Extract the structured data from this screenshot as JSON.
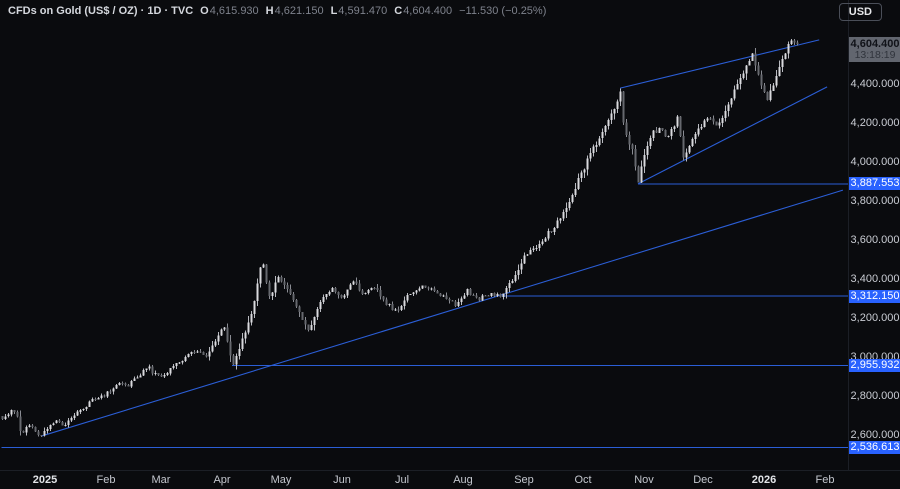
{
  "header": {
    "symbol_title": "CFDs on Gold (US$ / OZ) · 1D · TVC",
    "ohlc": [
      {
        "label": "O",
        "value": "4,615.930"
      },
      {
        "label": "H",
        "value": "4,621.150"
      },
      {
        "label": "L",
        "value": "4,591.470"
      },
      {
        "label": "C",
        "value": "4,604.400"
      }
    ],
    "change": "−11.530 (−0.25%)"
  },
  "toolbar": {
    "currency_label": "USD"
  },
  "price_axis": {
    "ticks": [
      {
        "label": "4,400.000",
        "price": 4400
      },
      {
        "label": "4,200.000",
        "price": 4200
      },
      {
        "label": "4,000.000",
        "price": 4000
      },
      {
        "label": "3,800.000",
        "price": 3800
      },
      {
        "label": "3,600.000",
        "price": 3600
      },
      {
        "label": "3,400.000",
        "price": 3400
      },
      {
        "label": "3,200.000",
        "price": 3200
      },
      {
        "label": "3,000.000",
        "price": 3000
      },
      {
        "label": "2,800.000",
        "price": 2800
      },
      {
        "label": "2,600.000",
        "price": 2600
      }
    ],
    "level_labels": [
      {
        "label": "3,887.553",
        "price": 3887.553
      },
      {
        "label": "3,312.150",
        "price": 3312.15
      },
      {
        "label": "2,955.932",
        "price": 2955.932
      },
      {
        "label": "2,536.613",
        "price": 2536.613
      }
    ],
    "current": {
      "label": "4,604.400",
      "countdown": "13:18:19",
      "price": 4604.4
    }
  },
  "time_axis": {
    "ticks": [
      {
        "label": "2025",
        "date": "2025-01-01",
        "bold": true
      },
      {
        "label": "Feb",
        "date": "2025-02-01",
        "bold": false
      },
      {
        "label": "Mar",
        "date": "2025-03-01",
        "bold": false
      },
      {
        "label": "Apr",
        "date": "2025-04-01",
        "bold": false
      },
      {
        "label": "May",
        "date": "2025-05-01",
        "bold": false
      },
      {
        "label": "Jun",
        "date": "2025-06-01",
        "bold": false
      },
      {
        "label": "Jul",
        "date": "2025-07-01",
        "bold": false
      },
      {
        "label": "Aug",
        "date": "2025-08-01",
        "bold": false
      },
      {
        "label": "Sep",
        "date": "2025-09-01",
        "bold": false
      },
      {
        "label": "Oct",
        "date": "2025-10-01",
        "bold": false
      },
      {
        "label": "Nov",
        "date": "2025-11-01",
        "bold": false
      },
      {
        "label": "Dec",
        "date": "2025-12-01",
        "bold": false
      },
      {
        "label": "2026",
        "date": "2026-01-01",
        "bold": true
      },
      {
        "label": "Feb",
        "date": "2026-02-01",
        "bold": false
      }
    ]
  },
  "chart_data": {
    "type": "candlestick",
    "title": "CFDs on Gold (US$ / OZ)",
    "timeframe": "1D",
    "exchange": "TVC",
    "ohlc_today": {
      "open": 4615.93,
      "high": 4621.15,
      "low": 4591.47,
      "close": 4604.4,
      "change": -11.53,
      "change_pct": -0.25
    },
    "visible_price_range": [
      2421,
      4831
    ],
    "visible_time_range": [
      "2024-12-10",
      "2026-02-28"
    ],
    "price_keypoints": [
      [
        "2024-12-10",
        2690
      ],
      [
        "2024-12-17",
        2732
      ],
      [
        "2024-12-20",
        2600
      ],
      [
        "2024-12-23",
        2655
      ],
      [
        "2024-12-27",
        2618
      ],
      [
        "2024-12-30",
        2594
      ],
      [
        "2025-01-03",
        2652
      ],
      [
        "2025-01-07",
        2668
      ],
      [
        "2025-01-10",
        2645
      ],
      [
        "2025-01-16",
        2705
      ],
      [
        "2025-01-24",
        2770
      ],
      [
        "2025-02-01",
        2812
      ],
      [
        "2025-02-07",
        2872
      ],
      [
        "2025-02-12",
        2855
      ],
      [
        "2025-02-22",
        2950
      ],
      [
        "2025-02-27",
        2898
      ],
      [
        "2025-03-05",
        2930
      ],
      [
        "2025-03-12",
        2990
      ],
      [
        "2025-03-19",
        3035
      ],
      [
        "2025-03-24",
        3008
      ],
      [
        "2025-03-30",
        3120
      ],
      [
        "2025-04-02",
        3148
      ],
      [
        "2025-04-04",
        3060
      ],
      [
        "2025-04-06",
        2958
      ],
      [
        "2025-04-11",
        3090
      ],
      [
        "2025-04-16",
        3240
      ],
      [
        "2025-04-21",
        3495
      ],
      [
        "2025-04-25",
        3300
      ],
      [
        "2025-04-29",
        3425
      ],
      [
        "2025-05-06",
        3320
      ],
      [
        "2025-05-11",
        3205
      ],
      [
        "2025-05-15",
        3128
      ],
      [
        "2025-05-20",
        3285
      ],
      [
        "2025-05-27",
        3355
      ],
      [
        "2025-06-01",
        3300
      ],
      [
        "2025-06-06",
        3388
      ],
      [
        "2025-06-11",
        3330
      ],
      [
        "2025-06-17",
        3360
      ],
      [
        "2025-06-22",
        3288
      ],
      [
        "2025-06-28",
        3230
      ],
      [
        "2025-07-05",
        3330
      ],
      [
        "2025-07-11",
        3362
      ],
      [
        "2025-07-17",
        3338
      ],
      [
        "2025-07-23",
        3310
      ],
      [
        "2025-07-28",
        3262
      ],
      [
        "2025-08-03",
        3340
      ],
      [
        "2025-08-09",
        3298
      ],
      [
        "2025-08-15",
        3322
      ],
      [
        "2025-08-21",
        3312
      ],
      [
        "2025-08-27",
        3415
      ],
      [
        "2025-09-01",
        3515
      ],
      [
        "2025-09-07",
        3558
      ],
      [
        "2025-09-14",
        3642
      ],
      [
        "2025-09-20",
        3718
      ],
      [
        "2025-09-26",
        3848
      ],
      [
        "2025-10-01",
        3958
      ],
      [
        "2025-10-06",
        4068
      ],
      [
        "2025-10-12",
        4178
      ],
      [
        "2025-10-17",
        4285
      ],
      [
        "2025-10-20",
        4365
      ],
      [
        "2025-10-22",
        4145
      ],
      [
        "2025-10-26",
        4065
      ],
      [
        "2025-10-29",
        3900
      ],
      [
        "2025-11-02",
        4078
      ],
      [
        "2025-11-05",
        4142
      ],
      [
        "2025-11-09",
        4180
      ],
      [
        "2025-11-13",
        4125
      ],
      [
        "2025-11-18",
        4228
      ],
      [
        "2025-11-21",
        4018
      ],
      [
        "2025-11-25",
        4122
      ],
      [
        "2025-11-30",
        4192
      ],
      [
        "2025-12-04",
        4222
      ],
      [
        "2025-12-08",
        4180
      ],
      [
        "2025-12-12",
        4262
      ],
      [
        "2025-12-16",
        4342
      ],
      [
        "2025-12-20",
        4422
      ],
      [
        "2025-12-23",
        4498
      ],
      [
        "2025-12-26",
        4548
      ],
      [
        "2025-12-29",
        4462
      ],
      [
        "2026-01-02",
        4312
      ],
      [
        "2026-01-04",
        4372
      ],
      [
        "2026-01-08",
        4462
      ],
      [
        "2026-01-12",
        4562
      ],
      [
        "2026-01-14",
        4625
      ],
      [
        "2026-01-16",
        4598
      ],
      [
        "2026-01-18",
        4604.4
      ]
    ],
    "trendlines": [
      {
        "name": "long-term-uptrend",
        "from": [
          "2024-12-30",
          2594
        ],
        "to": [
          "2026-02-10",
          3856
        ]
      },
      {
        "name": "wedge-upper",
        "from": [
          "2025-10-20",
          4379
        ],
        "to": [
          "2026-01-29",
          4626
        ]
      },
      {
        "name": "wedge-lower",
        "from": [
          "2025-10-29",
          3887.553
        ],
        "to": [
          "2026-02-02",
          4385
        ]
      }
    ],
    "horizontal_rays": [
      {
        "price": 3887.553,
        "from": "2025-10-29"
      },
      {
        "price": 3312.15,
        "from": "2025-08-21"
      },
      {
        "price": 2955.932,
        "from": "2025-04-06"
      },
      {
        "price": 2536.613,
        "from": "2024-12-10"
      }
    ],
    "colors": {
      "up": "#d9dadd",
      "down": "#66686e",
      "wick_up": "#b9bbc1",
      "wick_down": "#8a8c93",
      "line_blue": "#2b5ed6",
      "label_blue": "#2962ff",
      "current_tag_bg": "#62666f"
    }
  }
}
